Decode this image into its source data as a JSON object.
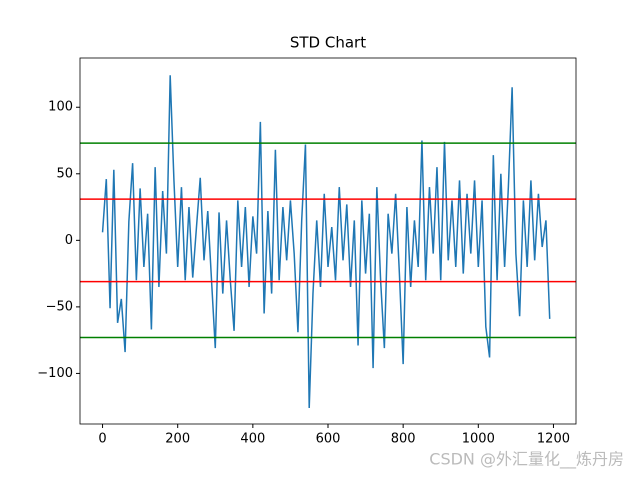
{
  "chart_data": {
    "type": "line",
    "title": "STD Chart",
    "x": [
      0,
      10,
      20,
      30,
      40,
      50,
      60,
      70,
      80,
      90,
      100,
      110,
      120,
      130,
      140,
      150,
      160,
      170,
      180,
      190,
      200,
      210,
      220,
      230,
      240,
      250,
      260,
      270,
      280,
      290,
      300,
      310,
      320,
      330,
      340,
      350,
      360,
      370,
      380,
      390,
      400,
      410,
      420,
      430,
      440,
      450,
      460,
      470,
      480,
      490,
      500,
      510,
      520,
      530,
      540,
      550,
      560,
      570,
      580,
      590,
      600,
      610,
      620,
      630,
      640,
      650,
      660,
      670,
      680,
      690,
      700,
      710,
      720,
      730,
      740,
      750,
      760,
      770,
      780,
      790,
      800,
      810,
      820,
      830,
      840,
      850,
      860,
      870,
      880,
      890,
      900,
      910,
      920,
      930,
      940,
      950,
      960,
      970,
      980,
      990,
      1000,
      1010,
      1020,
      1030,
      1040,
      1050,
      1060,
      1070,
      1080,
      1090,
      1100,
      1110,
      1120,
      1130,
      1140,
      1150,
      1160,
      1170,
      1180,
      1190
    ],
    "series": [
      {
        "name": "STD",
        "color": "#1f77b4",
        "values": [
          6,
          46,
          -51,
          53,
          -62,
          -44,
          -84,
          14,
          58,
          -30,
          39,
          -20,
          20,
          -67,
          55,
          -35,
          37,
          -10,
          124,
          45,
          -20,
          40,
          -30,
          25,
          -28,
          10,
          47,
          -15,
          22,
          -30,
          -81,
          21,
          -40,
          15,
          -30,
          -68,
          30,
          -20,
          25,
          -35,
          18,
          -10,
          89,
          -55,
          22,
          -40,
          68,
          -30,
          25,
          -15,
          30,
          -10,
          -69,
          15,
          72,
          -126,
          -40,
          15,
          -35,
          35,
          -20,
          10,
          -30,
          40,
          -15,
          27,
          -35,
          15,
          -79,
          30,
          -25,
          20,
          -96,
          40,
          -30,
          -81,
          20,
          -10,
          35,
          -25,
          -93,
          25,
          -35,
          15,
          -20,
          75,
          -30,
          40,
          -10,
          55,
          -30,
          74,
          -15,
          30,
          -20,
          45,
          -25,
          35,
          -10,
          45,
          -20,
          30,
          -65,
          -88,
          64,
          -30,
          50,
          -20,
          40,
          115,
          -10,
          -57,
          30,
          -20,
          45,
          -15,
          35,
          -5,
          15,
          -59
        ]
      }
    ],
    "hlines": [
      {
        "value": 73,
        "color": "green"
      },
      {
        "value": -73,
        "color": "green"
      },
      {
        "value": 31,
        "color": "red"
      },
      {
        "value": -31,
        "color": "red"
      }
    ],
    "xlim": [
      -60,
      1260
    ],
    "ylim": [
      -138,
      137
    ],
    "xticks": [
      0,
      200,
      400,
      600,
      800,
      1000,
      1200
    ],
    "yticks": [
      {
        "value": -100,
        "label": "−100"
      },
      {
        "value": -50,
        "label": "−50"
      },
      0,
      50,
      100
    ]
  },
  "watermark": "CSDN @外汇量化__炼丹房"
}
